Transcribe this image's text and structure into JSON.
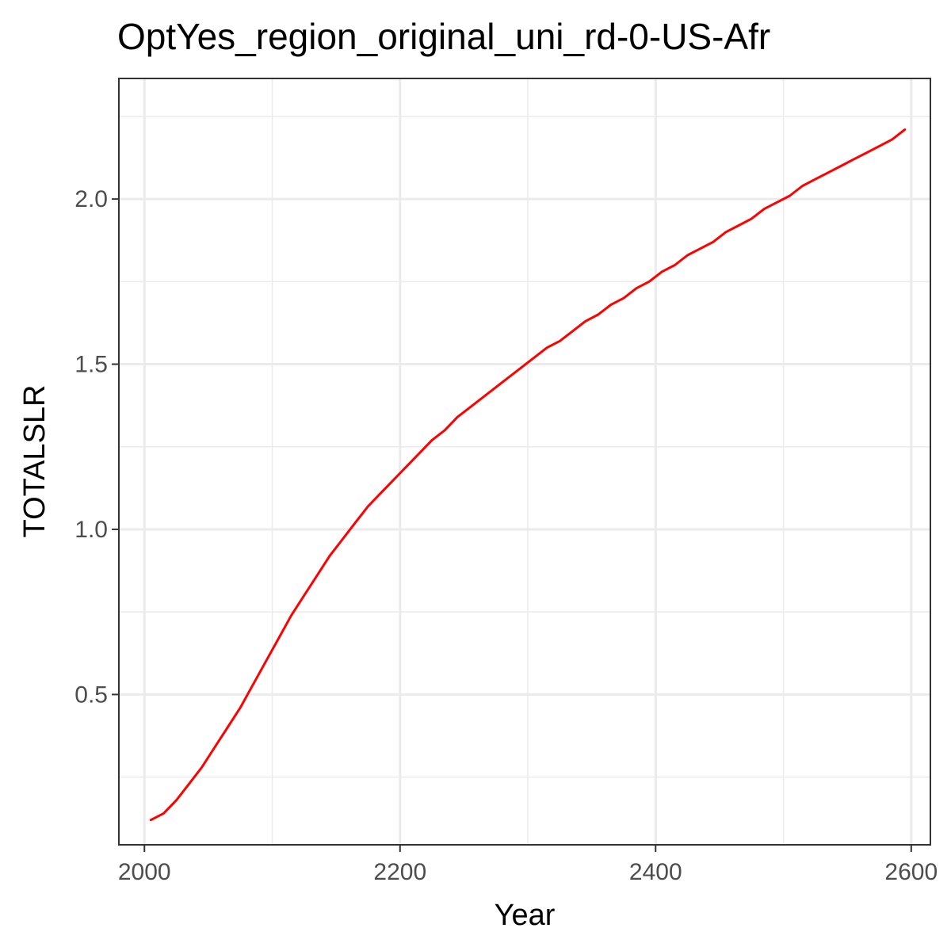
{
  "chart_data": {
    "type": "line",
    "title": "OptYes_region_original_uni_rd-0-US-Afr",
    "xlabel": "Year",
    "ylabel": "TOTALSLR",
    "xlim": [
      1980,
      2615
    ],
    "ylim": [
      0.045,
      2.365
    ],
    "x_ticks": [
      2000,
      2200,
      2400,
      2600
    ],
    "x_tick_labels": [
      "2000",
      "2200",
      "2400",
      "2600"
    ],
    "x_minor_ticks": [
      2100,
      2300,
      2500
    ],
    "y_ticks": [
      0.5,
      1.0,
      1.5,
      2.0
    ],
    "y_tick_labels": [
      "0.5",
      "1.0",
      "1.5",
      "2.0"
    ],
    "y_minor_ticks": [
      0.25,
      0.75,
      1.25,
      1.75,
      2.25
    ],
    "grid": true,
    "legend": "none",
    "series": [
      {
        "color": "#ff0000",
        "x": [
          2005,
          2015,
          2025,
          2035,
          2045,
          2055,
          2065,
          2075,
          2085,
          2095,
          2105,
          2115,
          2125,
          2135,
          2145,
          2155,
          2165,
          2175,
          2185,
          2195,
          2205,
          2215,
          2225,
          2235,
          2245,
          2255,
          2265,
          2275,
          2285,
          2295,
          2305,
          2315,
          2325,
          2335,
          2345,
          2355,
          2365,
          2375,
          2385,
          2395,
          2405,
          2415,
          2425,
          2435,
          2445,
          2455,
          2465,
          2475,
          2485,
          2495,
          2505,
          2515,
          2525,
          2535,
          2545,
          2555,
          2565,
          2575,
          2585,
          2595
        ],
        "y": [
          0.12,
          0.14,
          0.18,
          0.23,
          0.28,
          0.34,
          0.4,
          0.46,
          0.53,
          0.6,
          0.67,
          0.74,
          0.8,
          0.86,
          0.92,
          0.97,
          1.02,
          1.07,
          1.11,
          1.15,
          1.19,
          1.23,
          1.27,
          1.3,
          1.34,
          1.37,
          1.4,
          1.43,
          1.46,
          1.49,
          1.52,
          1.55,
          1.57,
          1.6,
          1.63,
          1.65,
          1.68,
          1.7,
          1.73,
          1.75,
          1.78,
          1.8,
          1.83,
          1.85,
          1.87,
          1.9,
          1.92,
          1.94,
          1.97,
          1.99,
          2.01,
          2.04,
          2.06,
          2.08,
          2.1,
          2.12,
          2.14,
          2.16,
          2.18,
          2.21
        ]
      }
    ]
  }
}
